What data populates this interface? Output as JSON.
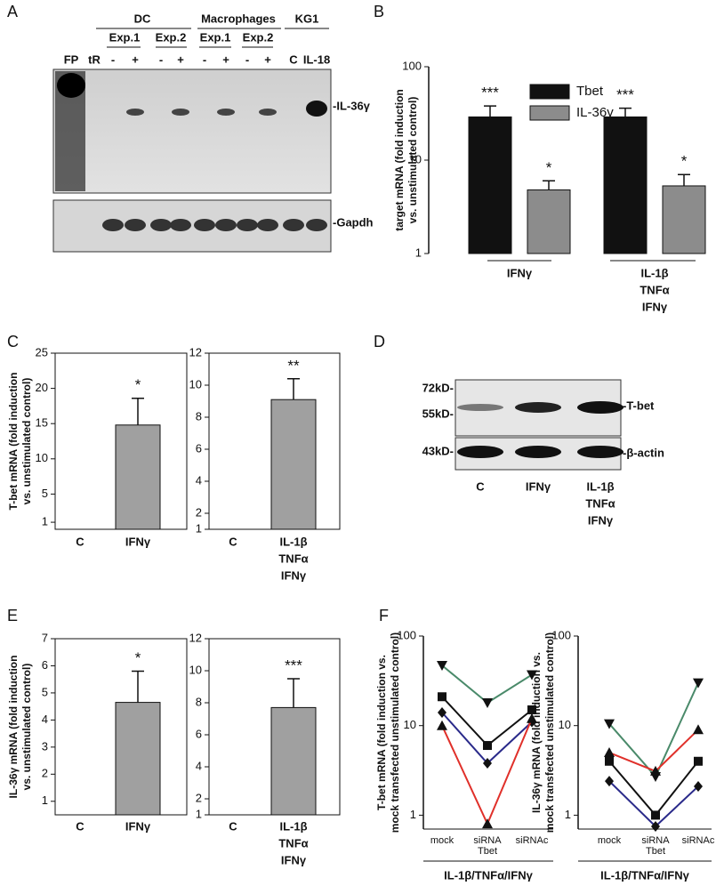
{
  "panel_labels": [
    "A",
    "B",
    "C",
    "D",
    "E",
    "F"
  ],
  "blot_a": {
    "groups": [
      {
        "label": "DC",
        "experiments": [
          "Exp.1",
          "Exp.2"
        ]
      },
      {
        "label": "Macrophages",
        "experiments": [
          "Exp.1",
          "Exp.2"
        ]
      },
      {
        "label": "KG1",
        "experiments": []
      }
    ],
    "lanes": [
      "FP",
      "tR",
      "-",
      "+",
      "-",
      "+",
      "-",
      "+",
      "-",
      "+",
      "C",
      "IL-18"
    ],
    "bands": [
      "-IL-36γ",
      "-Gapdh"
    ]
  },
  "blot_d": {
    "size_markers": [
      "72kD-",
      "55kD-",
      "43kD-"
    ],
    "bands": [
      "-T-bet",
      "-β-actin"
    ],
    "lanes": [
      [
        "C"
      ],
      [
        "IFNγ"
      ],
      [
        "IL-1β",
        "TNFα",
        "IFNγ"
      ]
    ]
  },
  "chart_data": [
    {
      "type": "bar",
      "log": true,
      "frame": false,
      "legend": "upper center",
      "ylabel": [
        "target mRNA (fold induction",
        "vs. unstimulated control)"
      ],
      "categories": [
        [
          "IFNγ"
        ],
        [
          "IL-1β",
          "TNFα",
          "IFNγ"
        ]
      ],
      "ylim": [
        1,
        100
      ],
      "yticks": [
        1,
        10,
        100
      ],
      "series": [
        {
          "name": "Tbet",
          "color": "#111111",
          "values": [
            29,
            29
          ],
          "errors": [
            9,
            7
          ],
          "significance": [
            "***",
            "***"
          ]
        },
        {
          "name": "IL-36γ",
          "color": "#8c8c8c",
          "values": [
            4.8,
            5.3
          ],
          "errors": [
            1.2,
            1.7
          ],
          "significance": [
            "*",
            "*"
          ]
        }
      ]
    },
    {
      "type": "bar",
      "log": false,
      "frame": true,
      "ylabel": [
        "T-bet mRNA (fold induction",
        "vs. unstimulated control)"
      ],
      "categories": [
        [
          "C"
        ],
        [
          "IFNγ"
        ]
      ],
      "ylim": [
        0,
        25
      ],
      "yticks": [
        1,
        5,
        10,
        15,
        20,
        25
      ],
      "series": [
        {
          "color": "#a0a0a0",
          "values": [
            null,
            14.8
          ],
          "errors": [
            null,
            3.8
          ],
          "significance": [
            null,
            "*"
          ]
        }
      ]
    },
    {
      "type": "bar",
      "log": false,
      "frame": true,
      "categories": [
        [
          "C"
        ],
        [
          "IL-1β",
          "TNFα",
          "IFNγ"
        ]
      ],
      "ylim": [
        1,
        12
      ],
      "yticks": [
        1,
        2,
        4,
        6,
        8,
        10,
        12
      ],
      "series": [
        {
          "color": "#a0a0a0",
          "values": [
            null,
            9.1
          ],
          "errors": [
            null,
            1.3
          ],
          "significance": [
            null,
            "**"
          ]
        }
      ]
    },
    {
      "type": "bar",
      "log": false,
      "frame": true,
      "ylabel": [
        "IL-36γ mRNA (fold induction",
        "vs. unstimulated control)"
      ],
      "categories": [
        [
          "C"
        ],
        [
          "IFNγ"
        ]
      ],
      "ylim": [
        0.5,
        7
      ],
      "yticks": [
        1,
        2,
        3,
        4,
        5,
        6,
        7
      ],
      "series": [
        {
          "color": "#a0a0a0",
          "values": [
            null,
            4.65
          ],
          "errors": [
            null,
            1.15
          ],
          "significance": [
            null,
            "*"
          ]
        }
      ]
    },
    {
      "type": "bar",
      "log": false,
      "frame": true,
      "categories": [
        [
          "C"
        ],
        [
          "IL-1β",
          "TNFα",
          "IFNγ"
        ]
      ],
      "ylim": [
        1,
        12
      ],
      "yticks": [
        1,
        2,
        4,
        6,
        8,
        10,
        12
      ],
      "series": [
        {
          "color": "#a0a0a0",
          "values": [
            null,
            7.7
          ],
          "errors": [
            null,
            1.8
          ],
          "significance": [
            null,
            "***"
          ]
        }
      ]
    },
    {
      "type": "line",
      "log": true,
      "frame": false,
      "ylabel": [
        "T-bet mRNA (fold induction vs.",
        "mock transfected unstimulated control)"
      ],
      "categories": [
        [
          "mock"
        ],
        [
          "siRNA",
          "Tbet"
        ],
        [
          "siRNAc"
        ]
      ],
      "xlabel": "IL-1β/TNFα/IFNγ",
      "ylim": [
        0.7,
        100
      ],
      "yticks": [
        1,
        10,
        100
      ],
      "series": [
        {
          "color": "#4a8a6a",
          "marker": "triangle-down",
          "values": [
            47,
            18,
            37
          ]
        },
        {
          "color": "#111111",
          "marker": "square",
          "values": [
            21,
            6,
            15
          ]
        },
        {
          "color": "#2a2a8a",
          "marker": "diamond",
          "values": [
            14,
            3.8,
            11
          ]
        },
        {
          "color": "#e0302a",
          "marker": "triangle-up",
          "values": [
            10,
            0.8,
            12
          ]
        }
      ]
    },
    {
      "type": "line",
      "log": true,
      "frame": false,
      "ylabel": [
        "IL-36γ mRNA (fold induction vs.",
        "mock transfected unstimulated control)"
      ],
      "categories": [
        [
          "mock"
        ],
        [
          "siRNA",
          "Tbet"
        ],
        [
          "siRNAc"
        ]
      ],
      "xlabel": "IL-1β/TNFα/IFNγ",
      "ylim": [
        0.7,
        100
      ],
      "yticks": [
        1,
        10,
        100
      ],
      "series": [
        {
          "color": "#4a8a6a",
          "marker": "triangle-down",
          "values": [
            10.5,
            2.7,
            30
          ]
        },
        {
          "color": "#e0302a",
          "marker": "triangle-up",
          "values": [
            5,
            3.1,
            9
          ]
        },
        {
          "color": "#111111",
          "marker": "square",
          "values": [
            4,
            1,
            4
          ]
        },
        {
          "color": "#2a2a8a",
          "marker": "diamond",
          "values": [
            2.4,
            0.75,
            2.1
          ]
        }
      ]
    }
  ]
}
